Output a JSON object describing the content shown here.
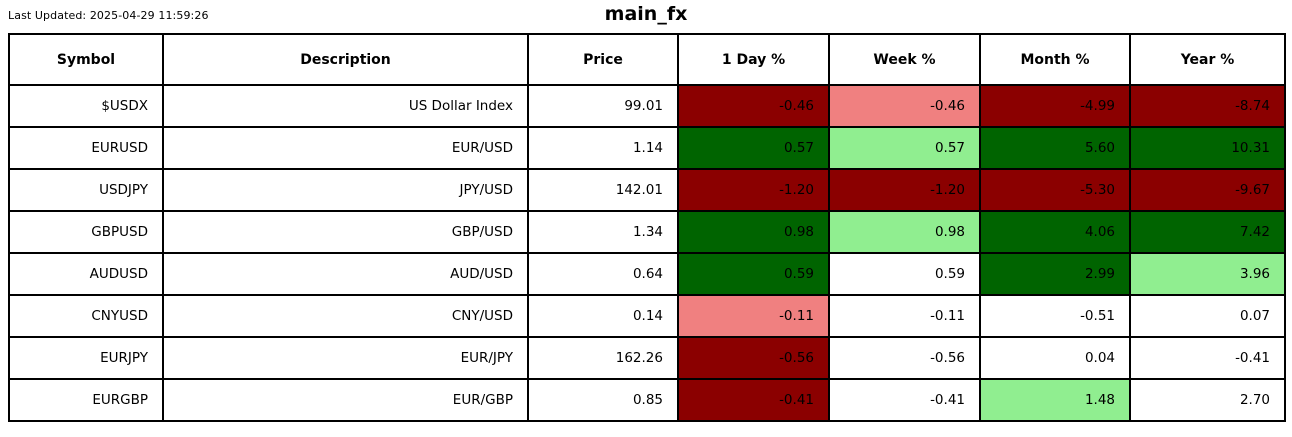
{
  "header": {
    "last_updated": "Last Updated: 2025-04-29 11:59:26",
    "title": "main_fx"
  },
  "colors": {
    "strong_negative": "#8b0000",
    "mild_negative": "#f08080",
    "strong_positive": "#006400",
    "mild_positive": "#90ee90",
    "neutral": "#ffffff",
    "border": "#000000",
    "text": "#000000"
  },
  "table": {
    "columns": [
      "Symbol",
      "Description",
      "Price",
      "1 Day %",
      "Week %",
      "Month %",
      "Year %"
    ],
    "rows": [
      {
        "symbol": "$USDX",
        "description": "US Dollar Index",
        "price": "99.01",
        "day": "-0.46",
        "week": "-0.46",
        "month": "-4.99",
        "year": "-8.74",
        "day_bg": "strong_negative",
        "week_bg": "mild_negative",
        "month_bg": "strong_negative",
        "year_bg": "strong_negative"
      },
      {
        "symbol": "EURUSD",
        "description": "EUR/USD",
        "price": "1.14",
        "day": "0.57",
        "week": "0.57",
        "month": "5.60",
        "year": "10.31",
        "day_bg": "strong_positive",
        "week_bg": "mild_positive",
        "month_bg": "strong_positive",
        "year_bg": "strong_positive"
      },
      {
        "symbol": "USDJPY",
        "description": "JPY/USD",
        "price": "142.01",
        "day": "-1.20",
        "week": "-1.20",
        "month": "-5.30",
        "year": "-9.67",
        "day_bg": "strong_negative",
        "week_bg": "strong_negative",
        "month_bg": "strong_negative",
        "year_bg": "strong_negative"
      },
      {
        "symbol": "GBPUSD",
        "description": "GBP/USD",
        "price": "1.34",
        "day": "0.98",
        "week": "0.98",
        "month": "4.06",
        "year": "7.42",
        "day_bg": "strong_positive",
        "week_bg": "mild_positive",
        "month_bg": "strong_positive",
        "year_bg": "strong_positive"
      },
      {
        "symbol": "AUDUSD",
        "description": "AUD/USD",
        "price": "0.64",
        "day": "0.59",
        "week": "0.59",
        "month": "2.99",
        "year": "3.96",
        "day_bg": "strong_positive",
        "week_bg": "neutral",
        "month_bg": "strong_positive",
        "year_bg": "mild_positive"
      },
      {
        "symbol": "CNYUSD",
        "description": "CNY/USD",
        "price": "0.14",
        "day": "-0.11",
        "week": "-0.11",
        "month": "-0.51",
        "year": "0.07",
        "day_bg": "mild_negative",
        "week_bg": "neutral",
        "month_bg": "neutral",
        "year_bg": "neutral"
      },
      {
        "symbol": "EURJPY",
        "description": "EUR/JPY",
        "price": "162.26",
        "day": "-0.56",
        "week": "-0.56",
        "month": "0.04",
        "year": "-0.41",
        "day_bg": "strong_negative",
        "week_bg": "neutral",
        "month_bg": "neutral",
        "year_bg": "neutral"
      },
      {
        "symbol": "EURGBP",
        "description": "EUR/GBP",
        "price": "0.85",
        "day": "-0.41",
        "week": "-0.41",
        "month": "1.48",
        "year": "2.70",
        "day_bg": "strong_negative",
        "week_bg": "neutral",
        "month_bg": "mild_positive",
        "year_bg": "neutral"
      }
    ]
  },
  "chart_data": {
    "type": "table",
    "title": "main_fx",
    "last_updated": "2025-04-29 11:59:26",
    "columns": [
      "Symbol",
      "Description",
      "Price",
      "1 Day %",
      "Week %",
      "Month %",
      "Year %"
    ],
    "rows": [
      [
        "$USDX",
        "US Dollar Index",
        99.01,
        -0.46,
        -0.46,
        -4.99,
        -8.74
      ],
      [
        "EURUSD",
        "EUR/USD",
        1.14,
        0.57,
        0.57,
        5.6,
        10.31
      ],
      [
        "USDJPY",
        "JPY/USD",
        142.01,
        -1.2,
        -1.2,
        -5.3,
        -9.67
      ],
      [
        "GBPUSD",
        "GBP/USD",
        1.34,
        0.98,
        0.98,
        4.06,
        7.42
      ],
      [
        "AUDUSD",
        "AUD/USD",
        0.64,
        0.59,
        0.59,
        2.99,
        3.96
      ],
      [
        "CNYUSD",
        "CNY/USD",
        0.14,
        -0.11,
        -0.11,
        -0.51,
        0.07
      ],
      [
        "EURJPY",
        "EUR/JPY",
        162.26,
        -0.56,
        -0.56,
        0.04,
        -0.41
      ],
      [
        "EURGBP",
        "EUR/GBP",
        0.85,
        -0.41,
        -0.41,
        1.48,
        2.7
      ]
    ],
    "legend_position": "none",
    "notes": "cell background encodes magnitude/sign of % change: darkred strong negative, lightcoral mild negative, white neutral, lightgreen mild positive, darkgreen strong positive"
  }
}
